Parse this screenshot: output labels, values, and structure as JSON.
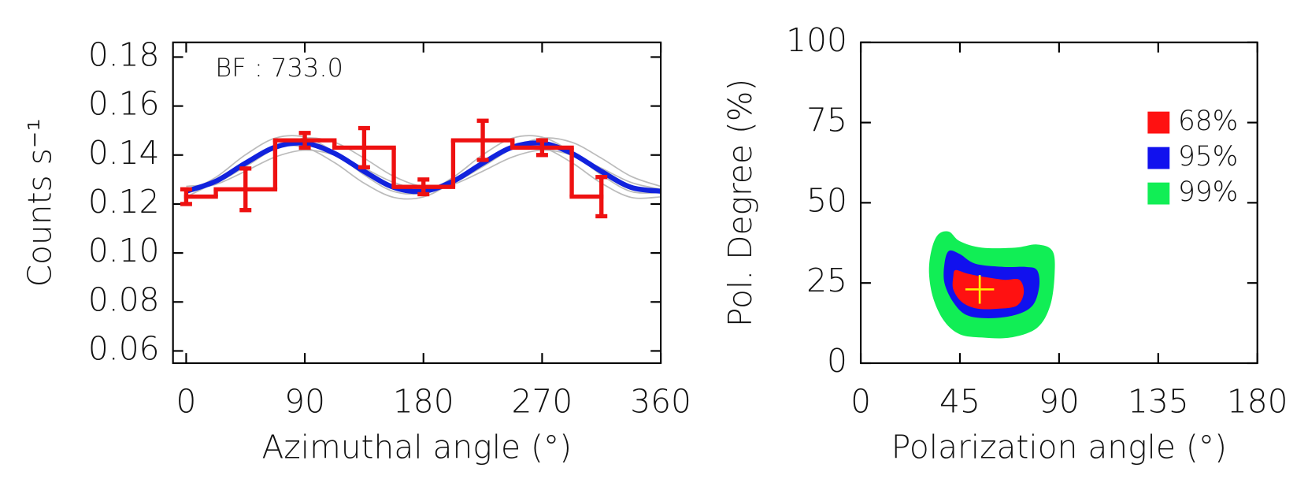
{
  "chart_data": [
    {
      "type": "step",
      "annotation": "BF : 733.0",
      "xlabel": "Azimuthal angle (°)",
      "ylabel": "Counts s⁻¹",
      "xlim": [
        -10,
        360
      ],
      "xticks": [
        0,
        90,
        180,
        270,
        360
      ],
      "ylim": [
        0.055,
        0.186
      ],
      "yticks": [
        {
          "value": 0.06,
          "label": "0.06"
        },
        {
          "value": 0.08,
          "label": "0.08"
        },
        {
          "value": 0.1,
          "label": "0.10"
        },
        {
          "value": 0.12,
          "label": "0.12"
        },
        {
          "value": 0.14,
          "label": "0.14"
        },
        {
          "value": 0.16,
          "label": "0.16"
        },
        {
          "value": 0.18,
          "label": "0.18"
        }
      ],
      "steps": {
        "color": "#ee1111",
        "x": [
          0,
          45,
          90,
          135,
          180,
          225,
          270,
          315
        ],
        "bins": [
          0,
          22.5,
          67.5,
          112.5,
          157.5,
          202.5,
          247.5,
          292.5,
          315
        ],
        "values": [
          0.123,
          0.126,
          0.146,
          0.143,
          0.127,
          0.146,
          0.143,
          0.123
        ],
        "errors": [
          0.003,
          0.0085,
          0.003,
          0.008,
          0.003,
          0.008,
          0.003,
          0.008
        ]
      },
      "curve_x": [
        0,
        22.5,
        45,
        67.5,
        90,
        112.5,
        135,
        157.5,
        180,
        202.5,
        225,
        247.5,
        270,
        292.5,
        315,
        337.5,
        360
      ],
      "curves": [
        {
          "color": "#bbbbbb",
          "values": [
            0.1247,
            0.1309,
            0.1401,
            0.1469,
            0.1473,
            0.1411,
            0.1319,
            0.1251,
            0.1247,
            0.1309,
            0.1401,
            0.1469,
            0.1473,
            0.1411,
            0.1319,
            0.1251,
            0.1247
          ]
        },
        {
          "color": "#bbbbbb",
          "values": [
            0.126,
            0.128,
            0.1334,
            0.1392,
            0.142,
            0.14,
            0.1346,
            0.1288,
            0.126,
            0.128,
            0.1334,
            0.1392,
            0.142,
            0.14,
            0.1346,
            0.1288,
            0.126
          ]
        },
        {
          "color": "#bbbbbb",
          "values": [
            0.1272,
            0.1288,
            0.1353,
            0.1427,
            0.1469,
            0.1452,
            0.1387,
            0.1313,
            0.1272,
            0.1288,
            0.1353,
            0.1427,
            0.1469,
            0.1452,
            0.1387,
            0.1313,
            0.1272
          ]
        },
        {
          "color": "#bbbbbb",
          "values": [
            0.1229,
            0.1291,
            0.1375,
            0.1433,
            0.1431,
            0.1369,
            0.1285,
            0.1227,
            0.1229,
            0.1291,
            0.1375,
            0.1433,
            0.1431,
            0.1369,
            0.1285,
            0.1227,
            0.1229
          ]
        },
        {
          "color": "#1122dd",
          "values": [
            0.1252,
            0.1293,
            0.1367,
            0.1432,
            0.1448,
            0.1407,
            0.1333,
            0.1268,
            0.1252,
            0.1293,
            0.1367,
            0.1432,
            0.1448,
            0.1407,
            0.1333,
            0.1268,
            0.1252
          ]
        }
      ]
    },
    {
      "type": "contour",
      "xlabel": "Polarization angle (°)",
      "ylabel": "Pol. Degree (%)",
      "xlim": [
        0,
        180
      ],
      "xticks": [
        0,
        45,
        90,
        135,
        180
      ],
      "ylim": [
        0,
        100
      ],
      "yticks": [
        0,
        25,
        50,
        75,
        100
      ],
      "series": [
        {
          "name": "68%",
          "color": "#ff1111",
          "x": [
            43,
            48,
            55,
            65,
            72,
            74,
            71,
            63,
            53,
            46,
            42,
            42
          ],
          "y": [
            29,
            28,
            27,
            26,
            26,
            22,
            18,
            17,
            17,
            19,
            23,
            27
          ]
        },
        {
          "name": "95%",
          "color": "#1111ee",
          "x": [
            40,
            45,
            52,
            65,
            75,
            80,
            81,
            78,
            70,
            58,
            48,
            42,
            38,
            38
          ],
          "y": [
            35,
            34,
            31,
            30,
            30,
            29,
            24,
            18,
            15,
            14,
            15,
            19,
            25,
            31
          ]
        },
        {
          "name": "99%",
          "color": "#11ee55",
          "x": [
            35,
            40,
            45,
            55,
            70,
            80,
            87,
            88,
            86,
            80,
            68,
            55,
            45,
            38,
            33,
            31,
            32
          ],
          "y": [
            40,
            41,
            38,
            36,
            36,
            37,
            35,
            28,
            18,
            11,
            8,
            8,
            9,
            13,
            20,
            28,
            35
          ]
        }
      ],
      "best_fit": {
        "x": 54,
        "y": 23,
        "color": "#ffee00"
      }
    }
  ]
}
